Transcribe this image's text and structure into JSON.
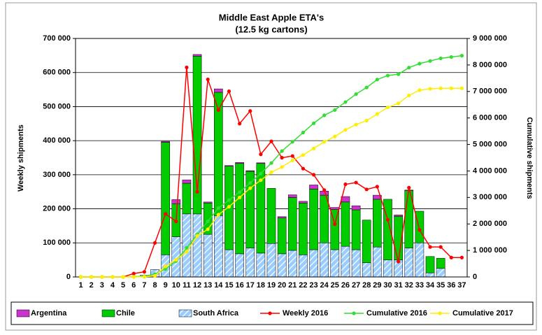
{
  "chart_data": {
    "type": "bar-line",
    "title": "Middle East Apple ETA's",
    "subtitle": "(12.5 kg cartons)",
    "y_label": "Weekly shipments",
    "y2_label": "Cumulative shipments",
    "categories": [
      "1",
      "2",
      "3",
      "4",
      "5",
      "6",
      "7",
      "8",
      "9",
      "10",
      "11",
      "12",
      "13",
      "14",
      "15",
      "16",
      "17",
      "18",
      "19",
      "20",
      "21",
      "22",
      "23",
      "24",
      "25",
      "26",
      "27",
      "28",
      "29",
      "30",
      "31",
      "32",
      "33",
      "34",
      "35",
      "36",
      "37"
    ],
    "ylim": [
      0,
      700000
    ],
    "yticks": [
      {
        "value": 0,
        "label": "0"
      },
      {
        "value": 100000,
        "label": "100 000"
      },
      {
        "value": 200000,
        "label": "200 000"
      },
      {
        "value": 300000,
        "label": "300 000"
      },
      {
        "value": 400000,
        "label": "400 000"
      },
      {
        "value": 500000,
        "label": "500 000"
      },
      {
        "value": 600000,
        "label": "600 000"
      },
      {
        "value": 700000,
        "label": "700 000"
      }
    ],
    "y2lim": [
      0,
      9000000
    ],
    "y2ticks": [
      {
        "value": 0,
        "label": "0"
      },
      {
        "value": 1000000,
        "label": "1 000 000"
      },
      {
        "value": 2000000,
        "label": "2 000 000"
      },
      {
        "value": 3000000,
        "label": "3 000 000"
      },
      {
        "value": 4000000,
        "label": "4 000 000"
      },
      {
        "value": 5000000,
        "label": "5 000 000"
      },
      {
        "value": 6000000,
        "label": "6 000 000"
      },
      {
        "value": 7000000,
        "label": "7 000 000"
      },
      {
        "value": 8000000,
        "label": "8 000 000"
      },
      {
        "value": 9000000,
        "label": "9 000 000"
      }
    ],
    "grid": true,
    "legend": "bottom",
    "series": [
      {
        "name": "Argentina",
        "kind": "bar",
        "color": "#cc33cc",
        "values": [
          0,
          0,
          0,
          0,
          0,
          0,
          0,
          0,
          3000,
          12000,
          10000,
          5000,
          3000,
          10000,
          2000,
          3000,
          2000,
          2000,
          0,
          4000,
          8000,
          5000,
          12000,
          12000,
          6000,
          16000,
          12000,
          0,
          12000,
          0,
          4000,
          2000,
          0,
          0,
          0,
          0,
          0
        ]
      },
      {
        "name": "Chile",
        "kind": "bar",
        "color": "#00cc00",
        "values": [
          0,
          0,
          0,
          0,
          0,
          0,
          0,
          0,
          330000,
          97000,
          90000,
          463000,
          92000,
          362000,
          245000,
          265000,
          225000,
          263000,
          162000,
          105000,
          155000,
          152000,
          178000,
          140000,
          118000,
          130000,
          117000,
          125000,
          140000,
          178000,
          128000,
          168000,
          93000,
          48000,
          30000,
          0,
          0
        ]
      },
      {
        "name": "South Africa",
        "kind": "bar",
        "color": "#99ccff",
        "hatch": true,
        "values": [
          0,
          0,
          0,
          0,
          0,
          0,
          5000,
          22000,
          65000,
          118000,
          185000,
          185000,
          125000,
          180000,
          80000,
          68000,
          85000,
          70000,
          98000,
          68000,
          78000,
          65000,
          80000,
          100000,
          80000,
          90000,
          80000,
          42000,
          88000,
          50000,
          50000,
          85000,
          100000,
          12000,
          25000,
          0,
          0
        ]
      },
      {
        "name": "Weekly 2016",
        "kind": "line",
        "color": "#ff0000",
        "values": [
          0,
          0,
          0,
          0,
          0,
          10000,
          15000,
          100000,
          185000,
          163000,
          615000,
          250000,
          580000,
          490000,
          545000,
          450000,
          487000,
          360000,
          398000,
          350000,
          355000,
          318000,
          300000,
          255000,
          155000,
          272000,
          277000,
          257000,
          265000,
          168000,
          45000,
          262000,
          138000,
          88000,
          88000,
          57000,
          57000
        ]
      },
      {
        "name": "Cumulative 2016",
        "kind": "line",
        "axis": "y2",
        "color": "#33dd33",
        "values": [
          0,
          0,
          0,
          0,
          0,
          10000,
          25000,
          100000,
          300000,
          600000,
          1100000,
          1600000,
          2100000,
          2600000,
          2900000,
          3200000,
          3550000,
          3900000,
          4300000,
          4750000,
          5100000,
          5450000,
          5800000,
          6100000,
          6300000,
          6600000,
          6900000,
          7150000,
          7450000,
          7600000,
          7650000,
          7900000,
          8050000,
          8150000,
          8250000,
          8300000,
          8350000
        ]
      },
      {
        "name": "Cumulative 2017",
        "kind": "line",
        "axis": "y2",
        "color": "#ffee00",
        "values": [
          0,
          0,
          0,
          0,
          0,
          0,
          5000,
          40000,
          400000,
          650000,
          950000,
          1550000,
          1800000,
          2350000,
          2650000,
          3000000,
          3350000,
          3650000,
          3950000,
          4150000,
          4400000,
          4600000,
          4850000,
          5100000,
          5300000,
          5550000,
          5750000,
          5900000,
          6150000,
          6400000,
          6550000,
          6850000,
          7050000,
          7100000,
          7120000,
          7120000,
          7120000
        ]
      }
    ]
  }
}
